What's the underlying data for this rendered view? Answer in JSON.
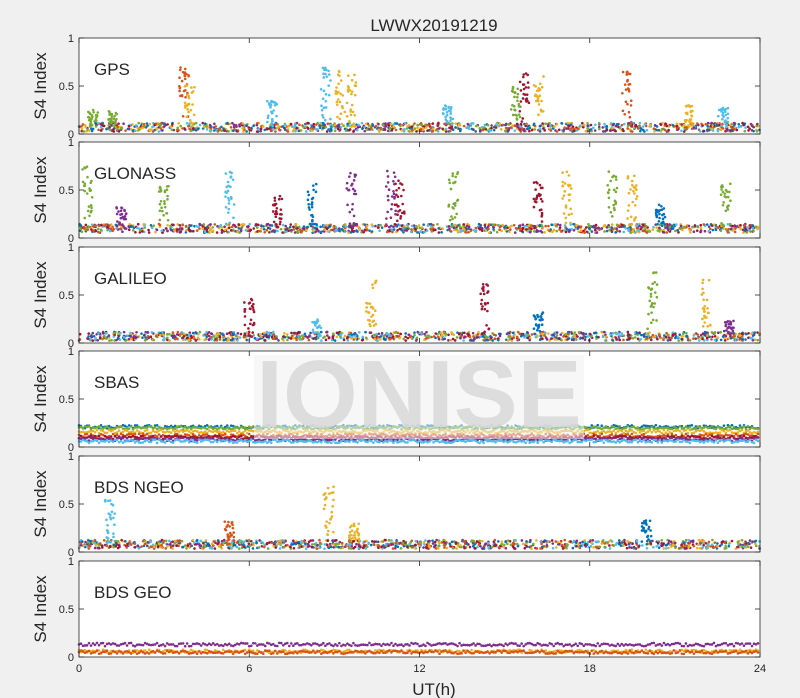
{
  "chart_data": {
    "type": "scatter",
    "title": "LWWX20191219",
    "xlabel": "UT(h)",
    "ylabel": "S4 Index",
    "xlim": [
      0,
      24
    ],
    "ylim": [
      0,
      1
    ],
    "xticks": [
      0,
      6,
      12,
      18,
      24
    ],
    "yticks": [
      0,
      0.5,
      1
    ],
    "xtick_labels": [
      "0",
      "6",
      "12",
      "18",
      "24"
    ],
    "ytick_labels": [
      "0",
      "0.5",
      "1"
    ],
    "grid": false,
    "watermark": "IONISE",
    "series_colors": [
      "#0072bd",
      "#d95319",
      "#edb120",
      "#7e2f8e",
      "#77ac30",
      "#4dbeee",
      "#a2142f"
    ],
    "panels": [
      {
        "label": "GPS",
        "baseline": 0.07,
        "spikes": [
          {
            "t": 0.5,
            "h": 0.25,
            "c": 4
          },
          {
            "t": 1.2,
            "h": 0.25,
            "c": 4
          },
          {
            "t": 3.7,
            "h": 0.7,
            "c": 1
          },
          {
            "t": 3.9,
            "h": 0.52,
            "c": 2
          },
          {
            "t": 6.8,
            "h": 0.35,
            "c": 5
          },
          {
            "t": 8.7,
            "h": 0.7,
            "c": 5
          },
          {
            "t": 9.2,
            "h": 0.66,
            "c": 2
          },
          {
            "t": 9.6,
            "h": 0.65,
            "c": 2
          },
          {
            "t": 13.0,
            "h": 0.3,
            "c": 5
          },
          {
            "t": 15.4,
            "h": 0.5,
            "c": 4
          },
          {
            "t": 15.7,
            "h": 0.65,
            "c": 6
          },
          {
            "t": 16.2,
            "h": 0.6,
            "c": 2
          },
          {
            "t": 19.3,
            "h": 0.65,
            "c": 1
          },
          {
            "t": 21.5,
            "h": 0.3,
            "c": 2
          },
          {
            "t": 22.7,
            "h": 0.3,
            "c": 5
          }
        ]
      },
      {
        "label": "GLONASS",
        "baseline": 0.1,
        "spikes": [
          {
            "t": 0.3,
            "h": 0.75,
            "c": 4
          },
          {
            "t": 1.5,
            "h": 0.35,
            "c": 3
          },
          {
            "t": 3.0,
            "h": 0.55,
            "c": 4
          },
          {
            "t": 5.3,
            "h": 0.7,
            "c": 5
          },
          {
            "t": 7.0,
            "h": 0.45,
            "c": 6
          },
          {
            "t": 8.2,
            "h": 0.6,
            "c": 0
          },
          {
            "t": 9.6,
            "h": 0.7,
            "c": 3
          },
          {
            "t": 11.0,
            "h": 0.7,
            "c": 3
          },
          {
            "t": 11.3,
            "h": 0.62,
            "c": 6
          },
          {
            "t": 13.2,
            "h": 0.72,
            "c": 4
          },
          {
            "t": 16.2,
            "h": 0.65,
            "c": 6
          },
          {
            "t": 17.2,
            "h": 0.7,
            "c": 2
          },
          {
            "t": 18.8,
            "h": 0.7,
            "c": 4
          },
          {
            "t": 19.5,
            "h": 0.65,
            "c": 2
          },
          {
            "t": 20.5,
            "h": 0.35,
            "c": 0
          },
          {
            "t": 22.8,
            "h": 0.6,
            "c": 4
          }
        ]
      },
      {
        "label": "GALILEO",
        "baseline": 0.07,
        "spikes": [
          {
            "t": 6.0,
            "h": 0.48,
            "c": 6
          },
          {
            "t": 8.4,
            "h": 0.25,
            "c": 5
          },
          {
            "t": 10.3,
            "h": 0.65,
            "c": 2
          },
          {
            "t": 14.3,
            "h": 0.65,
            "c": 6
          },
          {
            "t": 16.2,
            "h": 0.33,
            "c": 0
          },
          {
            "t": 20.2,
            "h": 0.75,
            "c": 4
          },
          {
            "t": 22.1,
            "h": 0.68,
            "c": 2
          },
          {
            "t": 22.9,
            "h": 0.23,
            "c": 3
          }
        ]
      },
      {
        "label": "SBAS",
        "baseline": 0.15,
        "spikes": []
      },
      {
        "label": "BDS NGEO",
        "baseline": 0.08,
        "spikes": [
          {
            "t": 1.1,
            "h": 0.55,
            "c": 5
          },
          {
            "t": 5.3,
            "h": 0.32,
            "c": 1
          },
          {
            "t": 8.8,
            "h": 0.68,
            "c": 2
          },
          {
            "t": 9.7,
            "h": 0.3,
            "c": 2
          },
          {
            "t": 20.0,
            "h": 0.33,
            "c": 0
          }
        ]
      },
      {
        "label": "BDS GEO",
        "baseline": 0.1,
        "spikes": []
      }
    ]
  }
}
